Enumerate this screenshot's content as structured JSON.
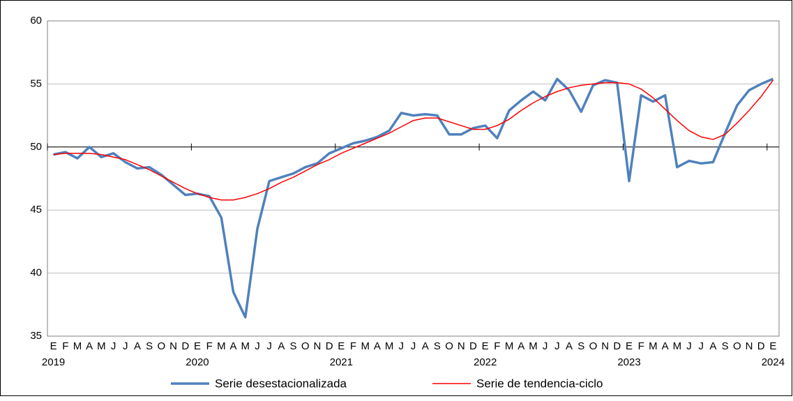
{
  "chart_data": {
    "type": "line",
    "categories": [
      "E",
      "F",
      "M",
      "A",
      "M",
      "J",
      "J",
      "A",
      "S",
      "O",
      "N",
      "D",
      "E",
      "F",
      "M",
      "A",
      "M",
      "J",
      "J",
      "A",
      "S",
      "O",
      "N",
      "D",
      "E",
      "F",
      "M",
      "A",
      "M",
      "J",
      "J",
      "A",
      "S",
      "O",
      "N",
      "D",
      "E",
      "F",
      "M",
      "A",
      "M",
      "J",
      "J",
      "A",
      "S",
      "O",
      "N",
      "D",
      "E",
      "F",
      "M",
      "A",
      "M",
      "J",
      "J",
      "A",
      "S",
      "O",
      "N",
      "D",
      "E"
    ],
    "years": [
      "2019",
      "2020",
      "2021",
      "2022",
      "2023",
      "2024"
    ],
    "series": [
      {
        "name": "Serie desestacionalizada",
        "color": "#4f81bd",
        "values": [
          49.4,
          49.6,
          49.1,
          50.0,
          49.2,
          49.5,
          48.8,
          48.3,
          48.4,
          47.8,
          47.0,
          46.2,
          46.3,
          46.1,
          44.4,
          38.5,
          36.5,
          43.5,
          47.3,
          47.6,
          47.9,
          48.4,
          48.7,
          49.5,
          49.9,
          50.3,
          50.5,
          50.8,
          51.3,
          52.7,
          52.5,
          52.6,
          52.5,
          51.0,
          51.0,
          51.5,
          51.7,
          50.7,
          52.9,
          53.7,
          54.4,
          53.7,
          55.4,
          54.5,
          52.8,
          54.9,
          55.3,
          55.1,
          47.3,
          54.1,
          53.6,
          54.1,
          48.4,
          48.9,
          48.7,
          48.8,
          51.1,
          53.3,
          54.5,
          55.0,
          55.4
        ]
      },
      {
        "name": "Serie de tendencia-ciclo",
        "color": "#ff0000",
        "values": [
          49.4,
          49.5,
          49.5,
          49.5,
          49.4,
          49.2,
          49.0,
          48.6,
          48.2,
          47.7,
          47.2,
          46.7,
          46.3,
          46.0,
          45.8,
          45.8,
          46.0,
          46.3,
          46.7,
          47.2,
          47.6,
          48.1,
          48.6,
          49.0,
          49.5,
          49.9,
          50.3,
          50.7,
          51.1,
          51.6,
          52.1,
          52.3,
          52.3,
          52.0,
          51.7,
          51.4,
          51.4,
          51.7,
          52.2,
          52.9,
          53.5,
          54.0,
          54.4,
          54.7,
          54.9,
          55.0,
          55.1,
          55.1,
          55.0,
          54.6,
          53.9,
          53.0,
          52.1,
          51.3,
          50.8,
          50.6,
          51.0,
          51.9,
          52.9,
          54.0,
          55.3
        ]
      }
    ],
    "ylim": [
      35,
      60
    ],
    "yticks": [
      35,
      40,
      45,
      50,
      55,
      60
    ],
    "grid": true,
    "xaxis_crosses": 50,
    "legend": "bottom"
  }
}
